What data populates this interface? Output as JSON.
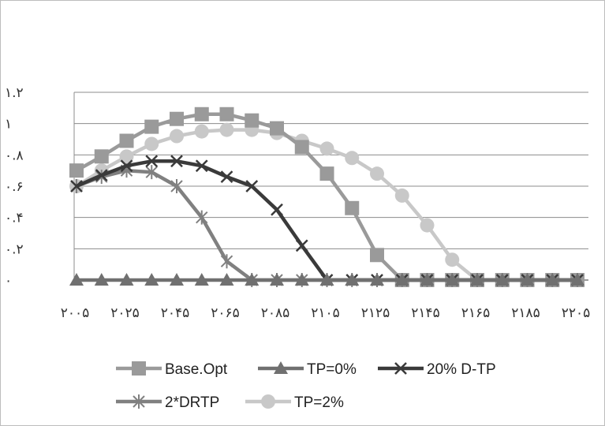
{
  "chart_data": {
    "type": "line",
    "title": "",
    "xlabel": "",
    "ylabel": "",
    "x": [
      2005,
      2015,
      2025,
      2035,
      2045,
      2055,
      2065,
      2075,
      2085,
      2095,
      2105,
      2115,
      2125,
      2135,
      2145,
      2155,
      2165,
      2175,
      2185,
      2195,
      2205
    ],
    "x_tick_labels": [
      "۲۰۰۵",
      "۲۰۲۵",
      "۲۰۴۵",
      "۲۰۶۵",
      "۲۰۸۵",
      "۲۱۰۵",
      "۲۱۲۵",
      "۲۱۴۵",
      "۲۱۶۵",
      "۲۱۸۵",
      "۲۲۰۵"
    ],
    "y_tick_labels": [
      "۰",
      "۰.۲",
      "۰.۴",
      "۰.۶",
      "۰.۸",
      "۱",
      "۱.۲"
    ],
    "ylim": [
      0,
      1.2
    ],
    "grid": "horizontal",
    "legend_position": "bottom",
    "series": [
      {
        "name": "Base.Opt",
        "marker": "square",
        "color": "#9a9a9a",
        "values": [
          0.7,
          0.79,
          0.89,
          0.98,
          1.03,
          1.06,
          1.06,
          1.02,
          0.97,
          0.85,
          0.68,
          0.46,
          0.16,
          0,
          0,
          0,
          0,
          0,
          0,
          0,
          0
        ]
      },
      {
        "name": "TP=0%",
        "marker": "triangle",
        "color": "#707070",
        "values": [
          0,
          0,
          0,
          0,
          0,
          0,
          0,
          0,
          0,
          0,
          0,
          0,
          0,
          0,
          0,
          0,
          0,
          0,
          0,
          0,
          0
        ]
      },
      {
        "name": "20% D-TP",
        "marker": "x",
        "color": "#3a3a3a",
        "values": [
          0.6,
          0.67,
          0.73,
          0.76,
          0.76,
          0.73,
          0.66,
          0.6,
          0.45,
          0.22,
          0,
          0,
          0,
          0,
          0,
          0,
          0,
          0,
          0,
          0,
          0
        ]
      },
      {
        "name": "2*DRTP",
        "marker": "star",
        "color": "#808080",
        "values": [
          0.6,
          0.66,
          0.7,
          0.69,
          0.6,
          0.4,
          0.12,
          0,
          0,
          0,
          0,
          0,
          0,
          0,
          0,
          0,
          0,
          0,
          0,
          0,
          0
        ]
      },
      {
        "name": "TP=2%",
        "marker": "circle",
        "color": "#c8c8c8",
        "values": [
          0.6,
          0.7,
          0.79,
          0.87,
          0.92,
          0.95,
          0.96,
          0.96,
          0.94,
          0.89,
          0.84,
          0.78,
          0.68,
          0.54,
          0.35,
          0.13,
          0,
          0,
          0,
          0,
          0
        ]
      }
    ]
  }
}
